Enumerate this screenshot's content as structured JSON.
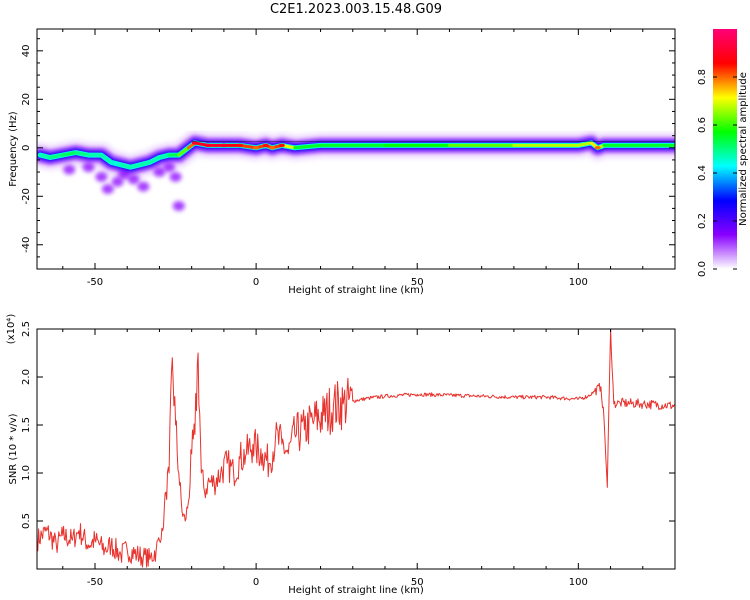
{
  "title": "C2E1.2023.003.15.48.G09",
  "chart_data": [
    {
      "type": "heatmap",
      "title": "C2E1.2023.003.15.48.G09",
      "xlabel": "Height of straight line (km)",
      "ylabel": "Frequency (Hz)",
      "xlim": [
        -68,
        130
      ],
      "ylim": [
        -50,
        49
      ],
      "xticks": [
        -50,
        0,
        50,
        100
      ],
      "yticks": [
        -40,
        -20,
        0,
        20,
        40
      ],
      "grid": false,
      "colorbar": {
        "label": "Normalized spectral amplitude",
        "range": [
          0.0,
          1.0
        ],
        "ticks": [
          "0.0",
          "0.2",
          "0.4",
          "0.6",
          "0.8"
        ],
        "colormap": [
          "#ffffff",
          "#8800ff",
          "#0000ff",
          "#00ffff",
          "#00ff00",
          "#ffff00",
          "#ff0000",
          "#ff0077"
        ]
      },
      "ridge": {
        "x": [
          -67,
          -64,
          -60,
          -56,
          -52,
          -48,
          -45,
          -42,
          -39,
          -36,
          -33,
          -30,
          -27,
          -24,
          -21,
          -19,
          -15,
          -10,
          -5,
          0,
          3,
          5,
          8,
          12,
          20,
          40,
          60,
          80,
          100,
          104,
          106,
          108,
          112,
          130
        ],
        "y": [
          -3,
          -4,
          -3,
          -2,
          -3,
          -3,
          -6,
          -7,
          -8,
          -7,
          -6,
          -4,
          -3,
          -3,
          0,
          2,
          1,
          1,
          1,
          0,
          1,
          0,
          1,
          0,
          1,
          1,
          1,
          1,
          1,
          2,
          0,
          1,
          1,
          1
        ],
        "amplitude": [
          0.45,
          0.5,
          0.5,
          0.55,
          0.45,
          0.5,
          0.45,
          0.45,
          0.5,
          0.45,
          0.5,
          0.45,
          0.5,
          0.55,
          0.7,
          0.9,
          0.9,
          0.9,
          0.85,
          0.8,
          0.85,
          0.8,
          0.85,
          0.55,
          0.55,
          0.55,
          0.6,
          0.65,
          0.7,
          0.65,
          0.8,
          0.55,
          0.55,
          0.55
        ]
      },
      "scatter_blobs": [
        {
          "x": -43,
          "y": -14
        },
        {
          "x": -46,
          "y": -17
        },
        {
          "x": -38,
          "y": -13
        },
        {
          "x": -30,
          "y": -10
        },
        {
          "x": -25,
          "y": -12
        },
        {
          "x": -24,
          "y": -24
        },
        {
          "x": -52,
          "y": -8
        },
        {
          "x": -58,
          "y": -9
        },
        {
          "x": -35,
          "y": -16
        },
        {
          "x": -41,
          "y": -11
        },
        {
          "x": -27,
          "y": -8
        },
        {
          "x": -48,
          "y": -12
        }
      ]
    },
    {
      "type": "line",
      "xlabel": "Height of straight line (km)",
      "ylabel": "SNR (10 * v/v)",
      "yscale_label": "(x10⁴)",
      "xlim": [
        -68,
        130
      ],
      "ylim": [
        0.0,
        2.5
      ],
      "xticks": [
        -50,
        0,
        50,
        100
      ],
      "yticks": [
        0.5,
        1.0,
        1.5,
        2.0,
        2.5
      ],
      "ytick_labels": [
        "0.5",
        "1.0",
        "1.5",
        "2.0",
        "2.5"
      ],
      "color": "#e8322d",
      "series": [
        {
          "x": [
            -68,
            -65,
            -62,
            -60,
            -57,
            -55,
            -52,
            -50,
            -47,
            -45,
            -42,
            -40,
            -37,
            -35,
            -33,
            -31,
            -29,
            -28,
            -27,
            -26,
            -25,
            -24,
            -23,
            -22,
            -21,
            -20,
            -19,
            -18,
            -17,
            -16,
            -15,
            -13,
            -11,
            -9,
            -7,
            -5,
            -3,
            -1,
            0,
            2,
            4,
            6,
            8,
            10,
            12,
            15,
            18,
            21,
            24,
            27,
            30,
            35,
            40,
            50,
            60,
            70,
            80,
            90,
            95,
            100,
            103,
            105,
            107,
            108,
            109,
            110,
            111,
            113,
            120,
            130
          ],
          "y": [
            0.3,
            0.4,
            0.25,
            0.35,
            0.3,
            0.4,
            0.25,
            0.3,
            0.2,
            0.25,
            0.15,
            0.2,
            0.15,
            0.12,
            0.1,
            0.2,
            0.4,
            0.8,
            1.0,
            2.2,
            1.5,
            1.0,
            0.6,
            0.5,
            0.7,
            1.2,
            1.4,
            2.25,
            1.0,
            0.8,
            0.9,
            0.9,
            1.0,
            1.1,
            1.0,
            1.15,
            1.2,
            1.3,
            1.25,
            1.2,
            1.1,
            1.35,
            1.3,
            1.2,
            1.4,
            1.45,
            1.55,
            1.6,
            1.7,
            1.72,
            1.75,
            1.78,
            1.8,
            1.82,
            1.81,
            1.8,
            1.79,
            1.79,
            1.78,
            1.77,
            1.8,
            1.85,
            1.9,
            1.55,
            0.85,
            2.5,
            1.72,
            1.73,
            1.72,
            1.7
          ]
        }
      ]
    }
  ]
}
